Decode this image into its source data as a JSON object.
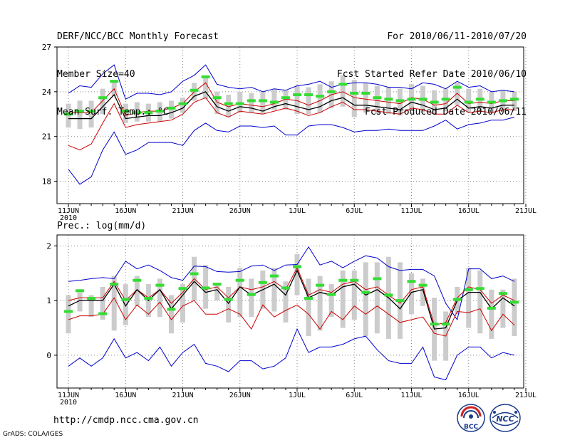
{
  "header": {
    "title": "DERF/NCC/BCC Monthly Forecast",
    "member_size": "Member Size=40",
    "variable": "Mean Surf. Temp.: °C",
    "period": "For 2010/06/11-2010/07/20",
    "fcst_started": "Fcst Started Refer Date 2010/06/10",
    "fcst_produced": "Fcst Produced Date 2010/06/11"
  },
  "footer": {
    "url": "http://cmdp.ncc.cma.gov.cn",
    "grads": "GrADS: COLA/IGES"
  },
  "logos": {
    "bcc": "BCC",
    "ncc": "NCC"
  },
  "colors": {
    "blue": "#0000cc",
    "red": "#cc0000",
    "black": "#000000",
    "green": "#33dd33",
    "gray": "#cccccc"
  },
  "chart_data": [
    {
      "type": "line",
      "title": "Mean Surf. Temp.: °C",
      "x_tick_labels": [
        "11JUN",
        "16JUN",
        "21JUN",
        "26JUN",
        "1JUL",
        "6JUL",
        "11JUL",
        "16JUL",
        "21JUL"
      ],
      "x_year_label": "2010",
      "ylim": [
        16.5,
        27
      ],
      "y_ticks": [
        18,
        21,
        24,
        27
      ],
      "series": [
        {
          "name": "max",
          "color": "blue",
          "values": [
            23.9,
            24.4,
            24.3,
            25.2,
            25.8,
            23.5,
            23.9,
            23.9,
            23.8,
            24.0,
            24.7,
            25.1,
            25.8,
            24.5,
            24.3,
            24.2,
            24.3,
            24.0,
            24.2,
            24.1,
            24.4,
            24.5,
            24.7,
            24.3,
            24.5,
            24.6,
            24.6,
            24.5,
            24.3,
            24.3,
            24.2,
            24.6,
            24.5,
            24.2,
            24.7,
            24.3,
            24.4,
            24.0,
            24.1,
            24.0
          ]
        },
        {
          "name": "upper",
          "color": "red",
          "values": [
            22.6,
            22.6,
            22.6,
            23.4,
            24.2,
            22.4,
            22.6,
            22.7,
            22.7,
            22.9,
            23.2,
            24.0,
            24.6,
            23.3,
            23.0,
            23.2,
            23.1,
            23.0,
            23.2,
            23.5,
            23.4,
            23.1,
            23.4,
            23.8,
            24.0,
            23.6,
            23.5,
            23.4,
            23.3,
            23.2,
            23.6,
            23.5,
            23.1,
            23.2,
            23.9,
            23.2,
            23.3,
            23.2,
            23.4,
            23.4
          ]
        },
        {
          "name": "mean",
          "color": "black",
          "values": [
            22.2,
            22.2,
            22.2,
            23.0,
            23.8,
            22.2,
            22.3,
            22.4,
            22.4,
            22.6,
            22.9,
            23.7,
            24.0,
            23.0,
            22.7,
            23.0,
            22.9,
            22.7,
            23.0,
            23.2,
            23.0,
            22.8,
            23.0,
            23.4,
            23.6,
            23.1,
            23.1,
            23.0,
            22.9,
            22.8,
            23.3,
            23.1,
            22.8,
            22.9,
            23.5,
            22.9,
            23.0,
            22.9,
            23.1,
            23.1
          ]
        },
        {
          "name": "lower",
          "color": "red",
          "values": [
            20.4,
            20.1,
            20.5,
            21.9,
            23.2,
            21.6,
            21.8,
            21.9,
            22.0,
            22.1,
            22.5,
            23.3,
            23.6,
            22.6,
            22.3,
            22.7,
            22.6,
            22.5,
            22.7,
            22.9,
            22.7,
            22.4,
            22.6,
            23.0,
            23.3,
            22.8,
            22.8,
            22.7,
            22.6,
            22.5,
            22.9,
            22.8,
            22.5,
            22.5,
            23.1,
            22.6,
            22.7,
            22.6,
            22.8,
            22.8
          ]
        },
        {
          "name": "min",
          "color": "blue",
          "values": [
            18.8,
            17.8,
            18.3,
            20.1,
            21.3,
            19.8,
            20.1,
            20.6,
            20.6,
            20.6,
            20.4,
            21.4,
            21.9,
            21.4,
            21.3,
            21.7,
            21.7,
            21.6,
            21.7,
            21.1,
            21.1,
            21.7,
            21.8,
            21.8,
            21.6,
            21.3,
            21.4,
            21.4,
            21.5,
            21.4,
            21.4,
            21.4,
            21.7,
            22.1,
            21.5,
            21.8,
            21.9,
            22.1,
            22.1,
            22.3
          ]
        }
      ],
      "boxes": {
        "low": [
          21.6,
          21.5,
          21.6,
          22.5,
          23.7,
          21.9,
          22.0,
          22.0,
          22.0,
          22.2,
          22.6,
          23.4,
          23.5,
          22.5,
          22.3,
          22.6,
          22.6,
          22.5,
          22.8,
          22.8,
          22.5,
          22.5,
          22.6,
          22.9,
          23.0,
          22.3,
          22.6,
          22.5,
          22.5,
          22.4,
          22.7,
          22.6,
          22.5,
          22.7,
          23.1,
          22.6,
          22.7,
          22.6,
          22.8,
          22.7
        ],
        "high": [
          23.2,
          23.4,
          23.4,
          24.2,
          24.7,
          23.2,
          23.3,
          23.2,
          23.3,
          23.4,
          23.6,
          24.6,
          24.9,
          24.0,
          23.8,
          24.0,
          23.9,
          24.0,
          24.2,
          24.1,
          24.4,
          24.3,
          24.5,
          24.7,
          25.1,
          24.8,
          24.6,
          24.4,
          24.3,
          24.2,
          24.5,
          24.4,
          24.1,
          24.2,
          24.6,
          24.2,
          24.2,
          24.0,
          24.1,
          24.0
        ]
      },
      "markers": [
        22.5,
        22.7,
        22.7,
        23.6,
        24.7,
        22.7,
        22.6,
        22.6,
        22.7,
        22.9,
        23.2,
        24.1,
        25.0,
        23.6,
        23.2,
        23.2,
        23.4,
        23.4,
        23.3,
        23.6,
        23.8,
        23.8,
        23.7,
        24.0,
        24.5,
        23.9,
        23.9,
        23.6,
        23.5,
        23.4,
        23.5,
        23.5,
        23.3,
        23.5,
        24.3,
        23.3,
        23.5,
        23.3,
        23.4,
        23.5
      ]
    },
    {
      "type": "line",
      "title": "Prec.: log(mm/d)",
      "x_tick_labels": [
        "11JUN",
        "16JUN",
        "21JUN",
        "26JUN",
        "1JUL",
        "6JUL",
        "11JUL",
        "16JUL",
        "21JUL"
      ],
      "x_year_label": "2010",
      "ylim": [
        -0.6,
        2.2
      ],
      "y_ticks": [
        0,
        1,
        2
      ],
      "series": [
        {
          "name": "max",
          "color": "blue",
          "values": [
            1.35,
            1.37,
            1.4,
            1.42,
            1.4,
            1.72,
            1.58,
            1.65,
            1.55,
            1.42,
            1.37,
            1.63,
            1.62,
            1.53,
            1.52,
            1.53,
            1.63,
            1.65,
            1.55,
            1.65,
            1.66,
            1.98,
            1.65,
            1.72,
            1.6,
            1.72,
            1.82,
            1.78,
            1.62,
            1.55,
            1.57,
            1.57,
            1.45,
            0.95,
            0.65,
            1.58,
            1.58,
            1.4,
            1.45,
            1.35
          ]
        },
        {
          "name": "upper",
          "color": "red",
          "values": [
            1.0,
            1.05,
            1.05,
            1.05,
            1.35,
            1.0,
            1.2,
            1.05,
            1.2,
            0.95,
            1.15,
            1.4,
            1.2,
            1.25,
            1.05,
            1.25,
            1.2,
            1.25,
            1.35,
            1.2,
            1.6,
            1.1,
            1.2,
            1.15,
            1.3,
            1.35,
            1.2,
            1.25,
            1.1,
            0.95,
            1.2,
            1.25,
            0.55,
            0.6,
            1.05,
            1.25,
            1.2,
            0.95,
            1.1,
            1.0
          ]
        },
        {
          "name": "mean",
          "color": "black",
          "values": [
            0.9,
            1.0,
            1.0,
            1.0,
            1.3,
            0.9,
            1.2,
            1.0,
            1.2,
            0.85,
            1.1,
            1.35,
            1.15,
            1.2,
            0.95,
            1.25,
            1.1,
            1.2,
            1.3,
            1.1,
            1.55,
            1.05,
            1.15,
            1.1,
            1.25,
            1.3,
            1.1,
            1.2,
            1.05,
            0.85,
            1.15,
            1.2,
            0.48,
            0.5,
            1.0,
            1.15,
            1.15,
            0.85,
            1.05,
            0.9
          ]
        },
        {
          "name": "lower",
          "color": "red",
          "values": [
            0.65,
            0.72,
            0.72,
            0.75,
            1.05,
            0.65,
            0.92,
            0.75,
            0.97,
            0.65,
            0.9,
            1.0,
            0.75,
            0.75,
            0.85,
            0.75,
            0.48,
            0.92,
            0.7,
            0.82,
            0.92,
            0.75,
            0.48,
            0.8,
            0.65,
            0.9,
            0.75,
            0.9,
            0.75,
            0.6,
            0.65,
            0.7,
            0.4,
            0.35,
            0.8,
            0.78,
            0.85,
            0.45,
            0.75,
            0.55
          ]
        },
        {
          "name": "min",
          "color": "blue",
          "values": [
            -0.2,
            -0.05,
            -0.2,
            -0.05,
            0.3,
            -0.05,
            0.05,
            -0.1,
            0.15,
            -0.2,
            0.05,
            0.2,
            -0.15,
            -0.2,
            -0.3,
            -0.1,
            -0.1,
            -0.25,
            -0.2,
            -0.05,
            0.48,
            0.05,
            0.15,
            0.15,
            0.2,
            0.3,
            0.35,
            0.1,
            -0.1,
            -0.15,
            -0.15,
            0.15,
            -0.4,
            -0.45,
            0.0,
            0.15,
            0.15,
            -0.05,
            0.05,
            0.0
          ]
        }
      ],
      "boxes": {
        "low": [
          0.4,
          0.8,
          0.7,
          0.65,
          0.45,
          0.55,
          0.9,
          0.7,
          0.7,
          0.4,
          0.6,
          1.0,
          0.85,
          1.0,
          0.6,
          0.7,
          0.7,
          0.85,
          0.8,
          0.6,
          1.1,
          0.35,
          0.45,
          0.7,
          0.5,
          0.65,
          0.35,
          0.4,
          0.3,
          0.3,
          0.75,
          0.9,
          -0.1,
          -0.1,
          0.75,
          0.5,
          0.4,
          0.3,
          0.5,
          0.35
        ],
        "high": [
          1.1,
          1.15,
          1.1,
          1.25,
          1.45,
          1.3,
          1.45,
          1.3,
          1.4,
          1.1,
          1.3,
          1.8,
          1.65,
          1.3,
          1.25,
          1.6,
          1.4,
          1.55,
          1.6,
          1.35,
          1.85,
          1.4,
          1.45,
          1.3,
          1.55,
          1.55,
          1.7,
          1.7,
          1.8,
          1.7,
          1.5,
          1.4,
          1.05,
          0.8,
          1.25,
          1.6,
          1.55,
          1.2,
          1.2,
          1.4
        ]
      },
      "markers": [
        0.8,
        1.18,
        1.04,
        0.76,
        1.3,
        1.02,
        1.37,
        1.04,
        1.28,
        0.84,
        1.22,
        1.49,
        1.23,
        1.3,
        1.02,
        1.37,
        1.11,
        1.33,
        1.45,
        1.23,
        1.62,
        1.04,
        1.28,
        1.11,
        1.37,
        1.37,
        1.15,
        1.4,
        1.1,
        1.0,
        1.35,
        1.28,
        0.57,
        0.57,
        1.02,
        1.2,
        1.22,
        0.86,
        1.13,
        0.97
      ]
    }
  ]
}
